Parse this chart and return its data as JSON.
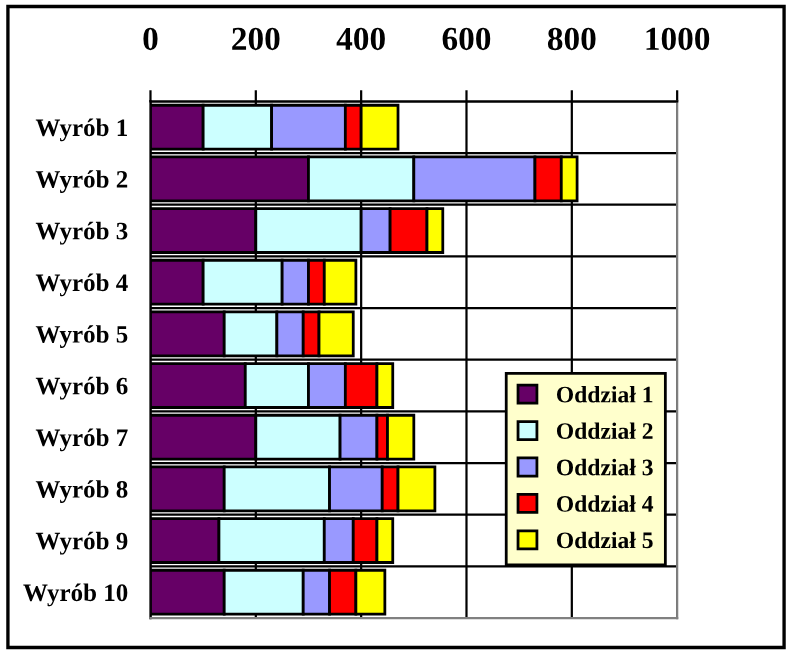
{
  "chart_data": {
    "type": "bar",
    "orientation": "horizontal",
    "stacked": true,
    "categories": [
      "Wyrób 1",
      "Wyrób 2",
      "Wyrób 3",
      "Wyrób 4",
      "Wyrób 5",
      "Wyrób 6",
      "Wyrób 7",
      "Wyrób 8",
      "Wyrób 9",
      "Wyrób 10"
    ],
    "series": [
      {
        "name": "Oddział 1",
        "color": "#660066",
        "values": [
          100,
          300,
          200,
          100,
          140,
          180,
          200,
          140,
          130,
          140
        ]
      },
      {
        "name": "Oddział 2",
        "color": "#ccffff",
        "values": [
          130,
          200,
          200,
          150,
          100,
          120,
          160,
          200,
          200,
          150
        ]
      },
      {
        "name": "Oddział 3",
        "color": "#9999ff",
        "values": [
          140,
          230,
          55,
          50,
          50,
          70,
          70,
          100,
          55,
          50
        ]
      },
      {
        "name": "Oddział 4",
        "color": "#ff0000",
        "values": [
          30,
          50,
          70,
          30,
          30,
          60,
          20,
          30,
          45,
          50
        ]
      },
      {
        "name": "Oddział 5",
        "color": "#ffff00",
        "values": [
          70,
          30,
          30,
          60,
          65,
          30,
          50,
          70,
          30,
          55
        ]
      }
    ],
    "xlim": [
      0,
      1000
    ],
    "xticks": [
      0,
      200,
      400,
      600,
      800,
      1000
    ],
    "grid": true,
    "legend": "bottom right"
  }
}
